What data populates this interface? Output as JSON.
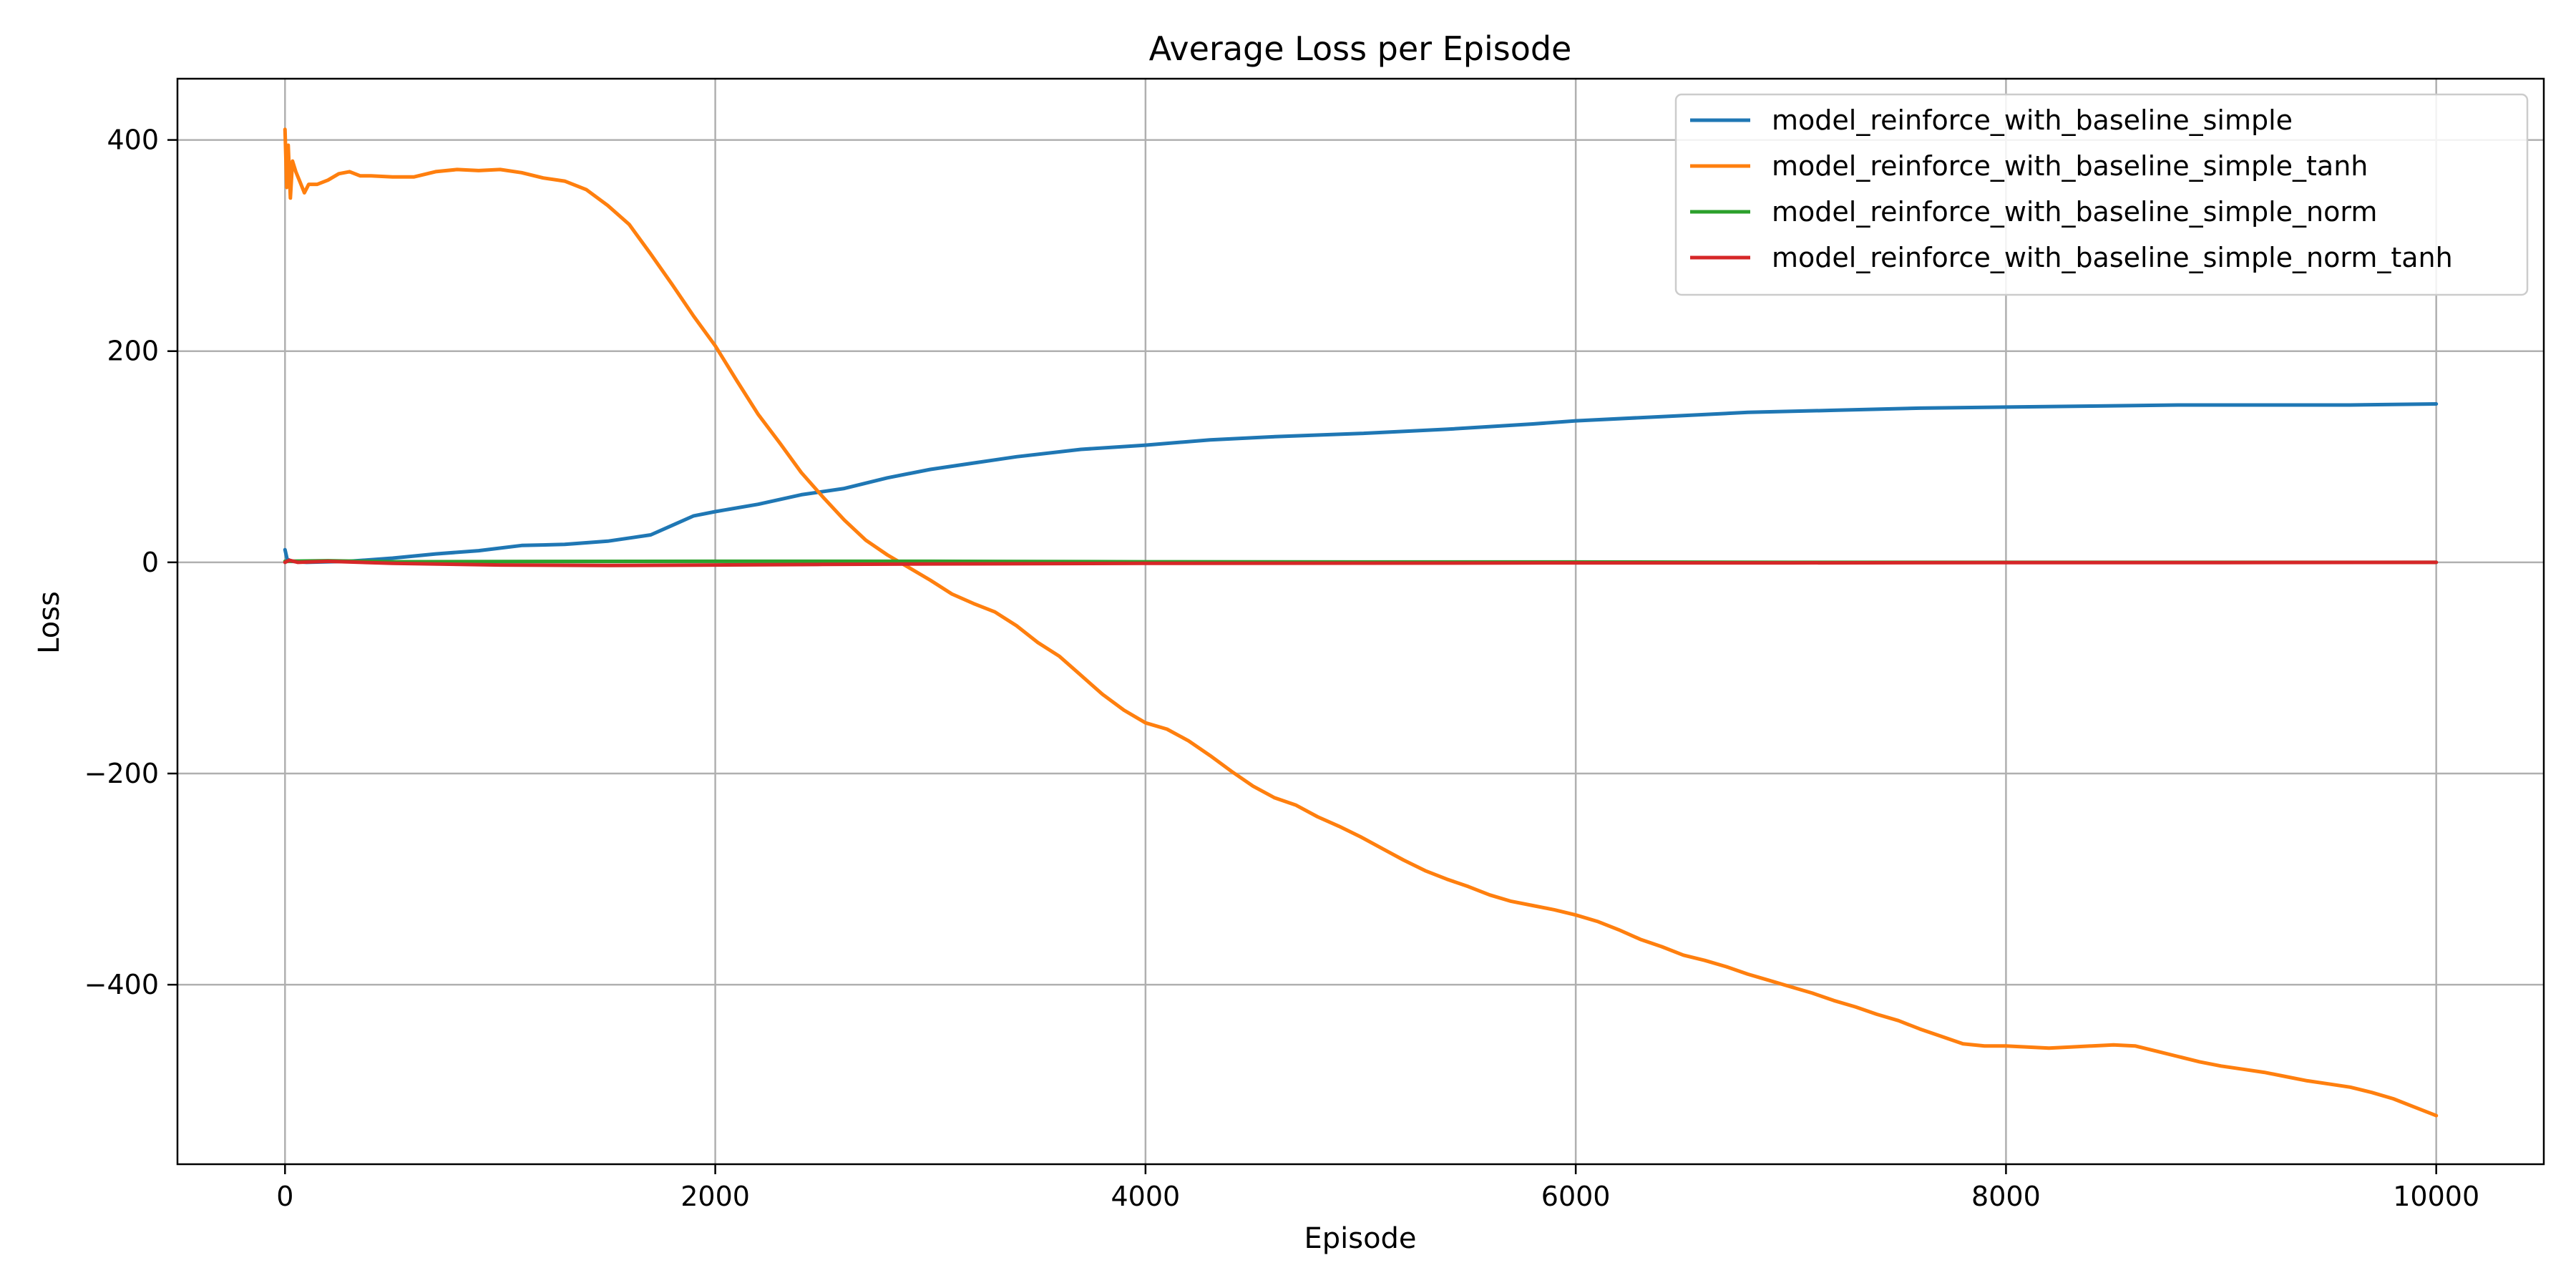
{
  "chart_data": {
    "type": "line",
    "title": "Average Loss per Episode",
    "xlabel": "Episode",
    "ylabel": "Loss",
    "xlim": [
      -500,
      10500
    ],
    "ylim": [
      -570,
      458
    ],
    "xticks": [
      0,
      2000,
      4000,
      6000,
      8000,
      10000
    ],
    "yticks": [
      -400,
      -200,
      0,
      200,
      400
    ],
    "xtick_labels": [
      "0",
      "2000",
      "4000",
      "6000",
      "8000",
      "10000"
    ],
    "ytick_labels": [
      "−400",
      "−200",
      "0",
      "200",
      "400"
    ],
    "grid": true,
    "legend_position": "top-right",
    "series": [
      {
        "name": "model_reinforce_with_baseline_simple",
        "color": "#1f77b4",
        "points": [
          [
            0,
            12
          ],
          [
            10,
            3
          ],
          [
            30,
            1
          ],
          [
            100,
            0
          ],
          [
            300,
            1
          ],
          [
            500,
            4
          ],
          [
            700,
            8
          ],
          [
            900,
            11
          ],
          [
            1100,
            16
          ],
          [
            1300,
            17
          ],
          [
            1500,
            20
          ],
          [
            1700,
            26
          ],
          [
            1800,
            35
          ],
          [
            1900,
            44
          ],
          [
            2000,
            48
          ],
          [
            2200,
            55
          ],
          [
            2400,
            64
          ],
          [
            2600,
            70
          ],
          [
            2800,
            80
          ],
          [
            3000,
            88
          ],
          [
            3200,
            94
          ],
          [
            3400,
            100
          ],
          [
            3700,
            107
          ],
          [
            4000,
            111
          ],
          [
            4300,
            116
          ],
          [
            4600,
            119
          ],
          [
            5000,
            122
          ],
          [
            5400,
            126
          ],
          [
            5800,
            131
          ],
          [
            6000,
            134
          ],
          [
            6400,
            138
          ],
          [
            6800,
            142
          ],
          [
            7200,
            144
          ],
          [
            7600,
            146
          ],
          [
            8000,
            147
          ],
          [
            8400,
            148
          ],
          [
            8800,
            149
          ],
          [
            9200,
            149
          ],
          [
            9600,
            149
          ],
          [
            10000,
            150
          ]
        ]
      },
      {
        "name": "model_reinforce_with_baseline_simple_tanh",
        "color": "#ff7f0e",
        "points": [
          [
            0,
            410
          ],
          [
            8,
            355
          ],
          [
            15,
            395
          ],
          [
            25,
            345
          ],
          [
            35,
            380
          ],
          [
            50,
            370
          ],
          [
            70,
            360
          ],
          [
            90,
            350
          ],
          [
            110,
            358
          ],
          [
            150,
            358
          ],
          [
            200,
            362
          ],
          [
            250,
            368
          ],
          [
            300,
            370
          ],
          [
            350,
            366
          ],
          [
            400,
            366
          ],
          [
            500,
            365
          ],
          [
            600,
            365
          ],
          [
            700,
            370
          ],
          [
            800,
            372
          ],
          [
            900,
            371
          ],
          [
            1000,
            372
          ],
          [
            1100,
            369
          ],
          [
            1200,
            364
          ],
          [
            1300,
            361
          ],
          [
            1400,
            353
          ],
          [
            1500,
            338
          ],
          [
            1600,
            320
          ],
          [
            1700,
            292
          ],
          [
            1800,
            263
          ],
          [
            1900,
            233
          ],
          [
            2000,
            205
          ],
          [
            2100,
            172
          ],
          [
            2200,
            140
          ],
          [
            2300,
            113
          ],
          [
            2400,
            85
          ],
          [
            2500,
            62
          ],
          [
            2600,
            40
          ],
          [
            2700,
            21
          ],
          [
            2800,
            7
          ],
          [
            2900,
            -5
          ],
          [
            3000,
            -17
          ],
          [
            3100,
            -30
          ],
          [
            3200,
            -39
          ],
          [
            3300,
            -47
          ],
          [
            3400,
            -60
          ],
          [
            3500,
            -76
          ],
          [
            3600,
            -89
          ],
          [
            3700,
            -107
          ],
          [
            3800,
            -125
          ],
          [
            3900,
            -140
          ],
          [
            4000,
            -152
          ],
          [
            4100,
            -158
          ],
          [
            4200,
            -169
          ],
          [
            4300,
            -183
          ],
          [
            4400,
            -198
          ],
          [
            4500,
            -212
          ],
          [
            4600,
            -223
          ],
          [
            4700,
            -230
          ],
          [
            4800,
            -241
          ],
          [
            4900,
            -250
          ],
          [
            5000,
            -260
          ],
          [
            5100,
            -271
          ],
          [
            5200,
            -282
          ],
          [
            5300,
            -292
          ],
          [
            5400,
            -300
          ],
          [
            5500,
            -307
          ],
          [
            5600,
            -315
          ],
          [
            5700,
            -321
          ],
          [
            5800,
            -325
          ],
          [
            5900,
            -329
          ],
          [
            6000,
            -334
          ],
          [
            6100,
            -340
          ],
          [
            6200,
            -348
          ],
          [
            6300,
            -357
          ],
          [
            6400,
            -364
          ],
          [
            6500,
            -372
          ],
          [
            6600,
            -377
          ],
          [
            6700,
            -383
          ],
          [
            6800,
            -390
          ],
          [
            6900,
            -396
          ],
          [
            7000,
            -402
          ],
          [
            7100,
            -408
          ],
          [
            7200,
            -415
          ],
          [
            7300,
            -421
          ],
          [
            7400,
            -428
          ],
          [
            7500,
            -434
          ],
          [
            7600,
            -442
          ],
          [
            7700,
            -449
          ],
          [
            7800,
            -456
          ],
          [
            7900,
            -458
          ],
          [
            8000,
            -458
          ],
          [
            8100,
            -459
          ],
          [
            8200,
            -460
          ],
          [
            8300,
            -459
          ],
          [
            8400,
            -458
          ],
          [
            8500,
            -457
          ],
          [
            8600,
            -458
          ],
          [
            8700,
            -463
          ],
          [
            8800,
            -468
          ],
          [
            8900,
            -473
          ],
          [
            9000,
            -477
          ],
          [
            9100,
            -480
          ],
          [
            9200,
            -483
          ],
          [
            9300,
            -487
          ],
          [
            9400,
            -491
          ],
          [
            9500,
            -494
          ],
          [
            9600,
            -497
          ],
          [
            9700,
            -502
          ],
          [
            9800,
            -508
          ],
          [
            9900,
            -516
          ],
          [
            10000,
            -524
          ]
        ]
      },
      {
        "name": "model_reinforce_with_baseline_simple_norm",
        "color": "#2ca02c",
        "points": [
          [
            0,
            1
          ],
          [
            200,
            1.5
          ],
          [
            500,
            0.5
          ],
          [
            1000,
            0.8
          ],
          [
            2000,
            1
          ],
          [
            3000,
            1
          ],
          [
            4000,
            0.5
          ],
          [
            5000,
            0.3
          ],
          [
            6000,
            0.3
          ],
          [
            7000,
            0
          ],
          [
            8000,
            0
          ],
          [
            9000,
            0
          ],
          [
            10000,
            0
          ]
        ]
      },
      {
        "name": "model_reinforce_with_baseline_simple_norm_tanh",
        "color": "#d62728",
        "points": [
          [
            0,
            0
          ],
          [
            20,
            2
          ],
          [
            60,
            0
          ],
          [
            200,
            1
          ],
          [
            500,
            -1
          ],
          [
            1000,
            -2.5
          ],
          [
            1500,
            -3
          ],
          [
            2000,
            -2.5
          ],
          [
            2500,
            -2
          ],
          [
            3000,
            -1.5
          ],
          [
            4000,
            -1
          ],
          [
            5000,
            -0.8
          ],
          [
            6000,
            -0.5
          ],
          [
            7000,
            -0.5
          ],
          [
            8000,
            -0.3
          ],
          [
            9000,
            -0.2
          ],
          [
            10000,
            0
          ]
        ]
      }
    ]
  }
}
